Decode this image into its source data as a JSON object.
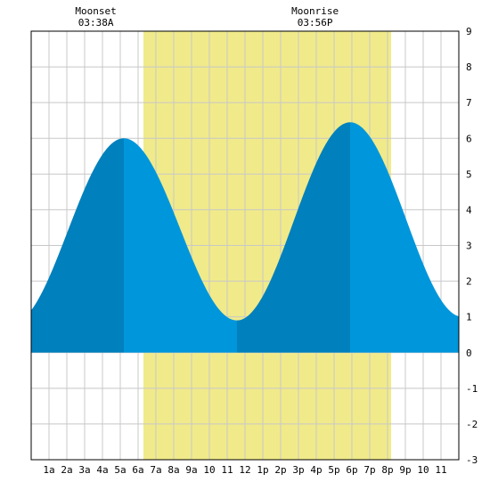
{
  "chart_data": {
    "type": "area",
    "title": "",
    "xlabel": "",
    "ylabel": "",
    "xlim": [
      0,
      24
    ],
    "ylim": [
      -3,
      9
    ],
    "grid": true,
    "x_tick_values": [
      1,
      2,
      3,
      4,
      5,
      6,
      7,
      8,
      9,
      10,
      11,
      12,
      13,
      14,
      15,
      16,
      17,
      18,
      19,
      20,
      21,
      22,
      23
    ],
    "x_tick_labels": [
      "1a",
      "2a",
      "3a",
      "4a",
      "5a",
      "6a",
      "7a",
      "8a",
      "9a",
      "10",
      "11",
      "12",
      "1p",
      "2p",
      "3p",
      "4p",
      "5p",
      "6p",
      "7p",
      "8p",
      "9p",
      "10",
      "11"
    ],
    "y_ticks": [
      -3,
      -2,
      -1,
      0,
      1,
      2,
      3,
      4,
      5,
      6,
      7,
      8,
      9
    ],
    "daylight": {
      "start": 6.3,
      "end": 20.2,
      "color": "#f0ea8a"
    },
    "moon_events": [
      {
        "label": "Moonset",
        "time": "03:38A",
        "x": 3.63
      },
      {
        "label": "Moonrise",
        "time": "03:56P",
        "x": 15.93
      }
    ],
    "tide_extremes": [
      {
        "x": -1.1,
        "y": 0.8,
        "kind": "low"
      },
      {
        "x": 5.2,
        "y": 6.0,
        "kind": "high"
      },
      {
        "x": 11.55,
        "y": 0.9,
        "kind": "low"
      },
      {
        "x": 17.9,
        "y": 6.45,
        "kind": "high"
      },
      {
        "x": 24.2,
        "y": 1.0,
        "kind": "low"
      }
    ],
    "colors": {
      "tide_light": "#0096dc",
      "tide_dark": "#0080bc",
      "grid": "#c8c8c8",
      "axis": "#000000"
    }
  }
}
